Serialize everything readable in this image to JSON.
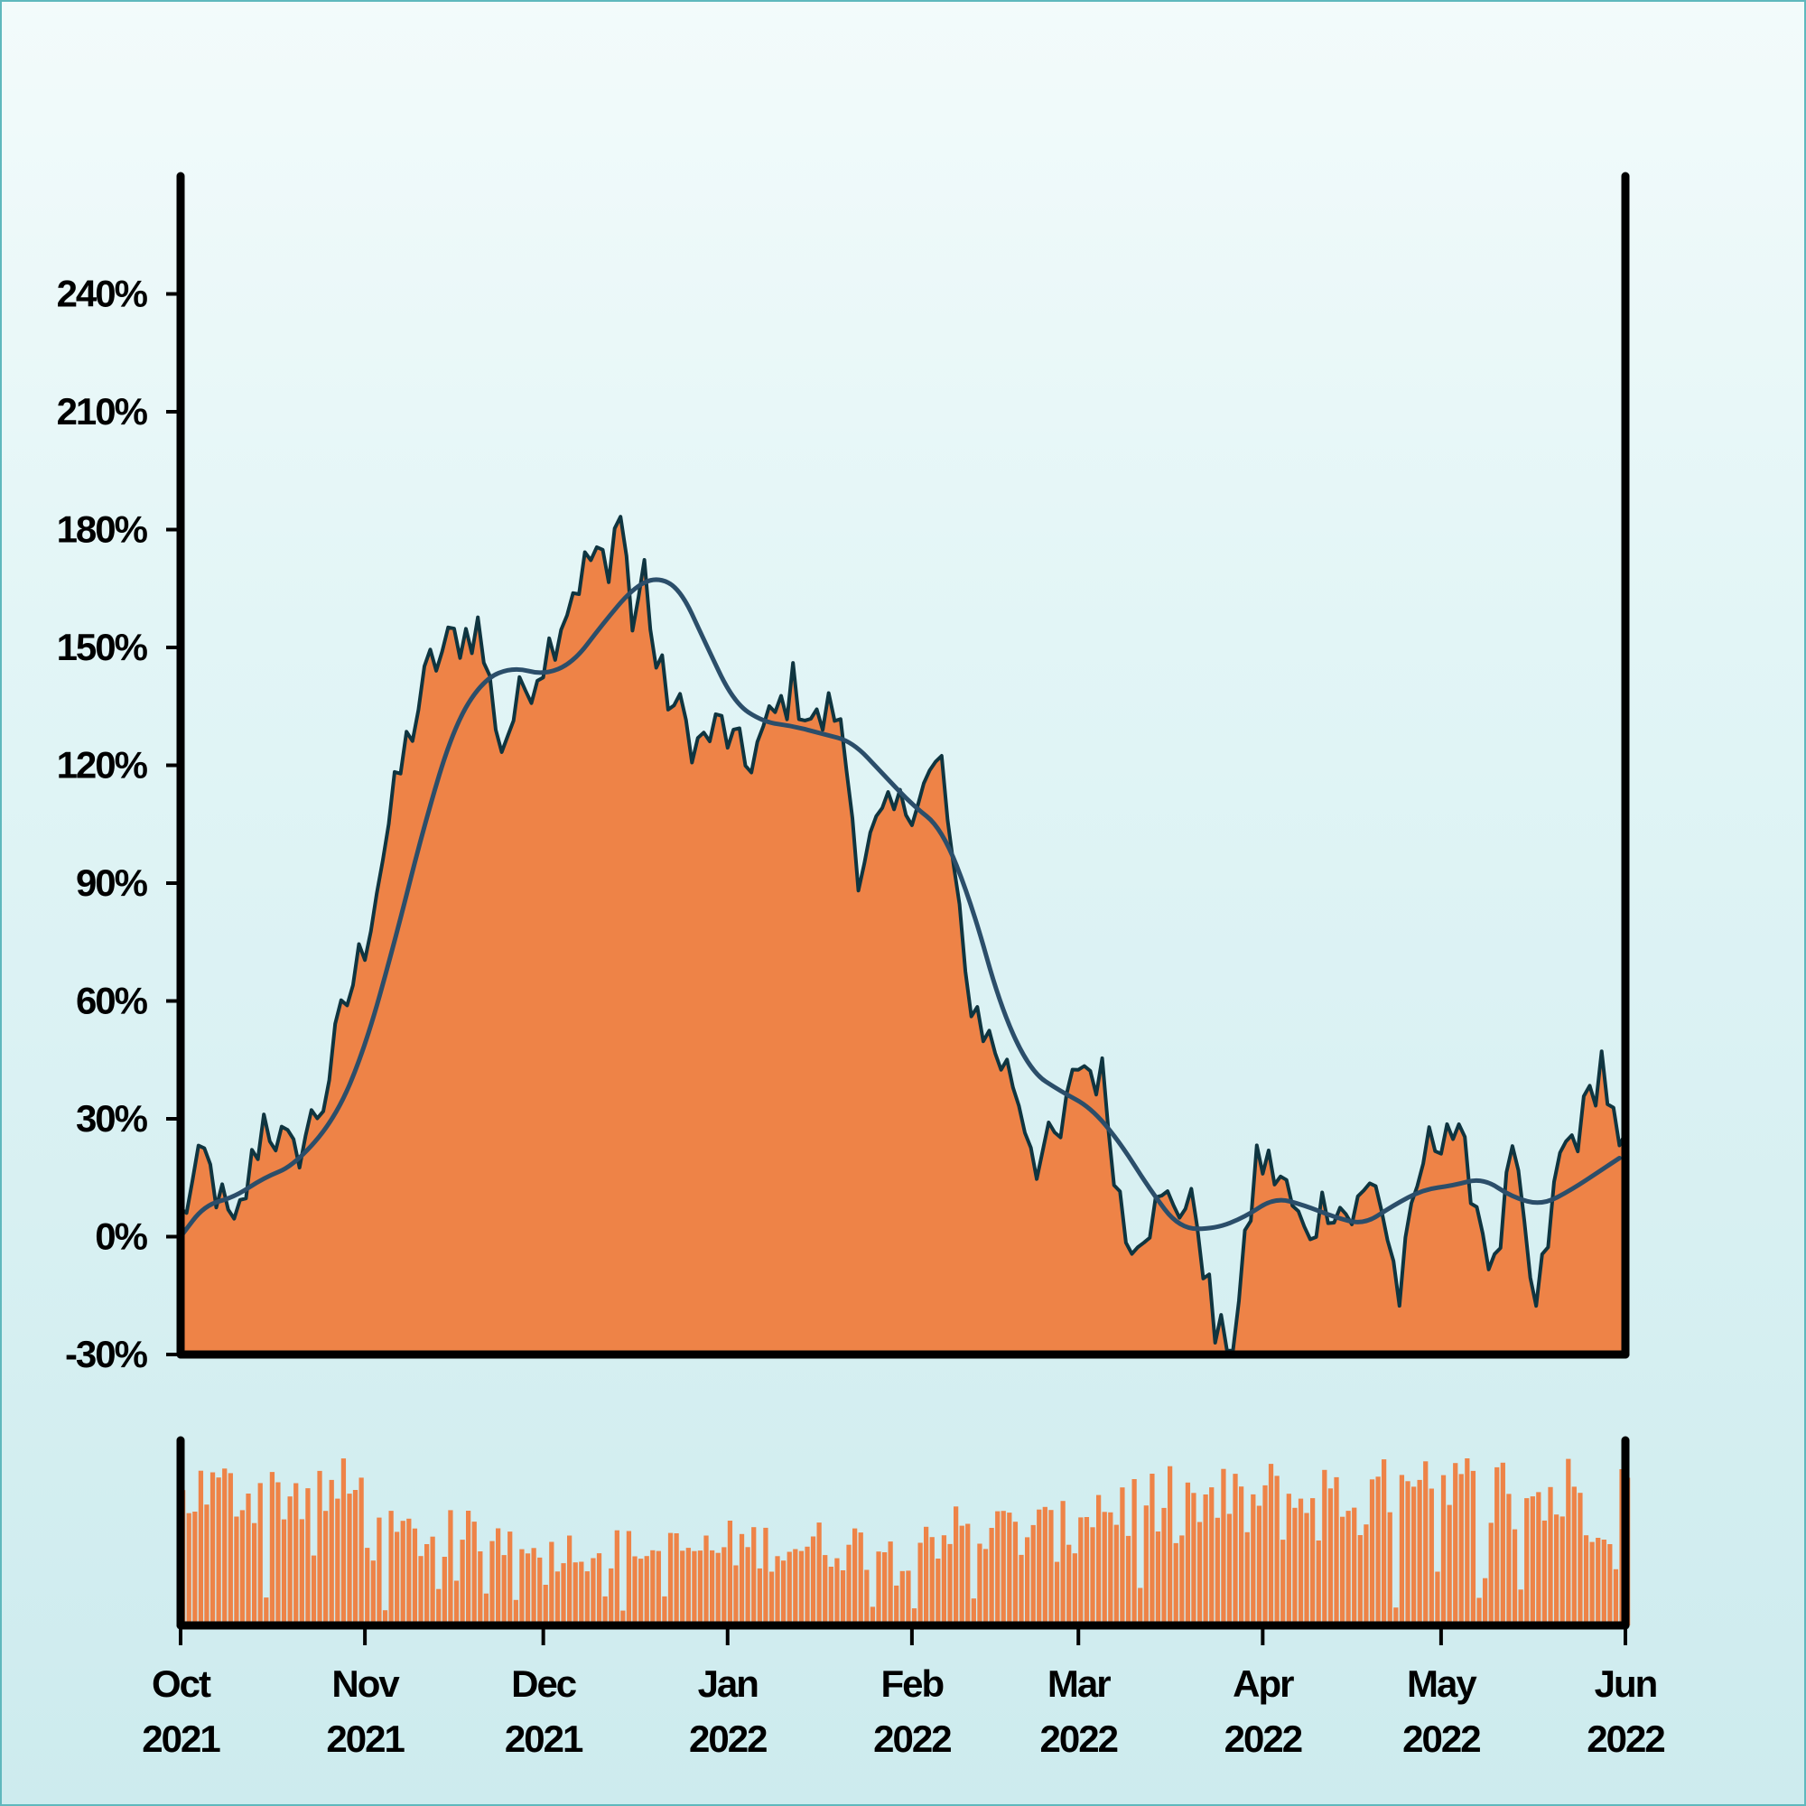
{
  "colors": {
    "area_fill": "#ee8347",
    "price_line": "#0f3540",
    "moving_average": "#2b4e6a",
    "volume_bar": "#ee8347",
    "axis": "#000000"
  },
  "chart_data": [
    {
      "type": "area",
      "title": "",
      "xlabel": "",
      "ylabel": "",
      "ylim": [
        -30,
        270
      ],
      "y_ticks": [
        "-30%",
        "0%",
        "30%",
        "60%",
        "90%",
        "120%",
        "150%",
        "180%",
        "210%",
        "240%"
      ],
      "y_tick_values": [
        -30,
        0,
        30,
        60,
        90,
        120,
        150,
        180,
        210,
        240
      ],
      "x_tick_labels": [
        {
          "month": "Oct",
          "year": "2021",
          "date": "2021-10-01"
        },
        {
          "month": "Nov",
          "year": "2021",
          "date": "2021-11-01"
        },
        {
          "month": "Dec",
          "year": "2021",
          "date": "2021-12-01"
        },
        {
          "month": "Jan",
          "year": "2022",
          "date": "2022-01-01"
        },
        {
          "month": "Feb",
          "year": "2022",
          "date": "2022-02-01"
        },
        {
          "month": "Mar",
          "year": "2022",
          "date": "2022-03-01"
        },
        {
          "month": "Apr",
          "year": "2022",
          "date": "2022-04-01"
        },
        {
          "month": "May",
          "year": "2022",
          "date": "2022-05-01"
        },
        {
          "month": "Jun",
          "year": "2022",
          "date": "2022-06-01"
        }
      ],
      "xlim": [
        "2021-10-01",
        "2022-06-01"
      ],
      "grid": false,
      "series": [
        {
          "style": "filled area with dark outline",
          "x": [
            "2021-10-01",
            "2021-10-05",
            "2021-10-10",
            "2021-10-15",
            "2021-10-20",
            "2021-10-25",
            "2021-10-28",
            "2021-11-01",
            "2021-11-05",
            "2021-11-08",
            "2021-11-12",
            "2021-11-16",
            "2021-11-20",
            "2021-11-24",
            "2021-11-28",
            "2021-12-02",
            "2021-12-06",
            "2021-12-10",
            "2021-12-12",
            "2021-12-14",
            "2021-12-16",
            "2021-12-18",
            "2021-12-20",
            "2021-12-23",
            "2021-12-27",
            "2021-12-31",
            "2022-01-04",
            "2022-01-08",
            "2022-01-12",
            "2022-01-16",
            "2022-01-19",
            "2022-01-21",
            "2022-01-23",
            "2022-01-27",
            "2022-01-31",
            "2022-02-03",
            "2022-02-06",
            "2022-02-10",
            "2022-02-14",
            "2022-02-18",
            "2022-02-22",
            "2022-02-26",
            "2022-03-01",
            "2022-03-05",
            "2022-03-09",
            "2022-03-13",
            "2022-03-17",
            "2022-03-21",
            "2022-03-24",
            "2022-03-27",
            "2022-03-31",
            "2022-04-04",
            "2022-04-08",
            "2022-04-12",
            "2022-04-16",
            "2022-04-20",
            "2022-04-24",
            "2022-04-28",
            "2022-05-02",
            "2022-05-06",
            "2022-05-10",
            "2022-05-13",
            "2022-05-17",
            "2022-05-21",
            "2022-05-25",
            "2022-05-28",
            "2022-05-31"
          ],
          "values": [
            5,
            20,
            0,
            30,
            20,
            35,
            55,
            75,
            105,
            125,
            145,
            152,
            155,
            125,
            140,
            150,
            165,
            175,
            165,
            190,
            155,
            170,
            145,
            135,
            125,
            130,
            120,
            130,
            140,
            130,
            135,
            120,
            95,
            105,
            110,
            115,
            120,
            65,
            50,
            40,
            20,
            25,
            45,
            40,
            0,
            5,
            10,
            5,
            -25,
            -30,
            20,
            15,
            0,
            10,
            5,
            15,
            -15,
            20,
            30,
            15,
            -10,
            20,
            -20,
            20,
            30,
            45,
            20
          ]
        },
        {
          "name": "",
          "style": "moving average line",
          "x": [
            "2021-10-01",
            "2021-10-05",
            "2021-10-10",
            "2021-10-15",
            "2021-10-20",
            "2021-10-27",
            "2021-11-01",
            "2021-11-06",
            "2021-11-11",
            "2021-11-16",
            "2021-11-21",
            "2021-11-26",
            "2021-12-01",
            "2021-12-06",
            "2021-12-11",
            "2021-12-16",
            "2021-12-20",
            "2021-12-24",
            "2021-12-28",
            "2022-01-02",
            "2022-01-07",
            "2022-01-12",
            "2022-01-17",
            "2022-01-22",
            "2022-01-27",
            "2022-02-01",
            "2022-02-06",
            "2022-02-11",
            "2022-02-16",
            "2022-02-21",
            "2022-02-26",
            "2022-03-03",
            "2022-03-08",
            "2022-03-13",
            "2022-03-18",
            "2022-03-24",
            "2022-03-29",
            "2022-04-03",
            "2022-04-08",
            "2022-04-13",
            "2022-04-18",
            "2022-04-23",
            "2022-04-28",
            "2022-05-03",
            "2022-05-08",
            "2022-05-13",
            "2022-05-18",
            "2022-05-23",
            "2022-05-28",
            "2022-05-31"
          ],
          "values": [
            0,
            8,
            10,
            15,
            18,
            30,
            48,
            75,
            105,
            130,
            142,
            145,
            143,
            146,
            156,
            165,
            168,
            165,
            152,
            136,
            131,
            130,
            128,
            126,
            118,
            110,
            104,
            85,
            58,
            42,
            37,
            33,
            24,
            12,
            2,
            2,
            5,
            10,
            8,
            5,
            3,
            8,
            12,
            13,
            15,
            10,
            8,
            12,
            17,
            20
          ]
        }
      ]
    },
    {
      "type": "bar",
      "title": "",
      "description_of_series": "daily volume bars, unlabeled axis",
      "xlim": [
        "2021-10-01",
        "2022-06-01"
      ],
      "monthly_relative_levels": [
        {
          "month": "2021-10",
          "level": [
            0.55,
            0.95
          ]
        },
        {
          "month": "2021-11",
          "level": [
            0.35,
            0.65
          ]
        },
        {
          "month": "2021-12",
          "level": [
            0.3,
            0.55
          ]
        },
        {
          "month": "2022-01",
          "level": [
            0.3,
            0.6
          ]
        },
        {
          "month": "2022-02",
          "level": [
            0.35,
            0.7
          ]
        },
        {
          "month": "2022-03",
          "level": [
            0.45,
            0.9
          ]
        },
        {
          "month": "2022-04",
          "level": [
            0.45,
            0.95
          ]
        },
        {
          "month": "2022-05",
          "level": [
            0.45,
            1.0
          ]
        }
      ]
    }
  ]
}
